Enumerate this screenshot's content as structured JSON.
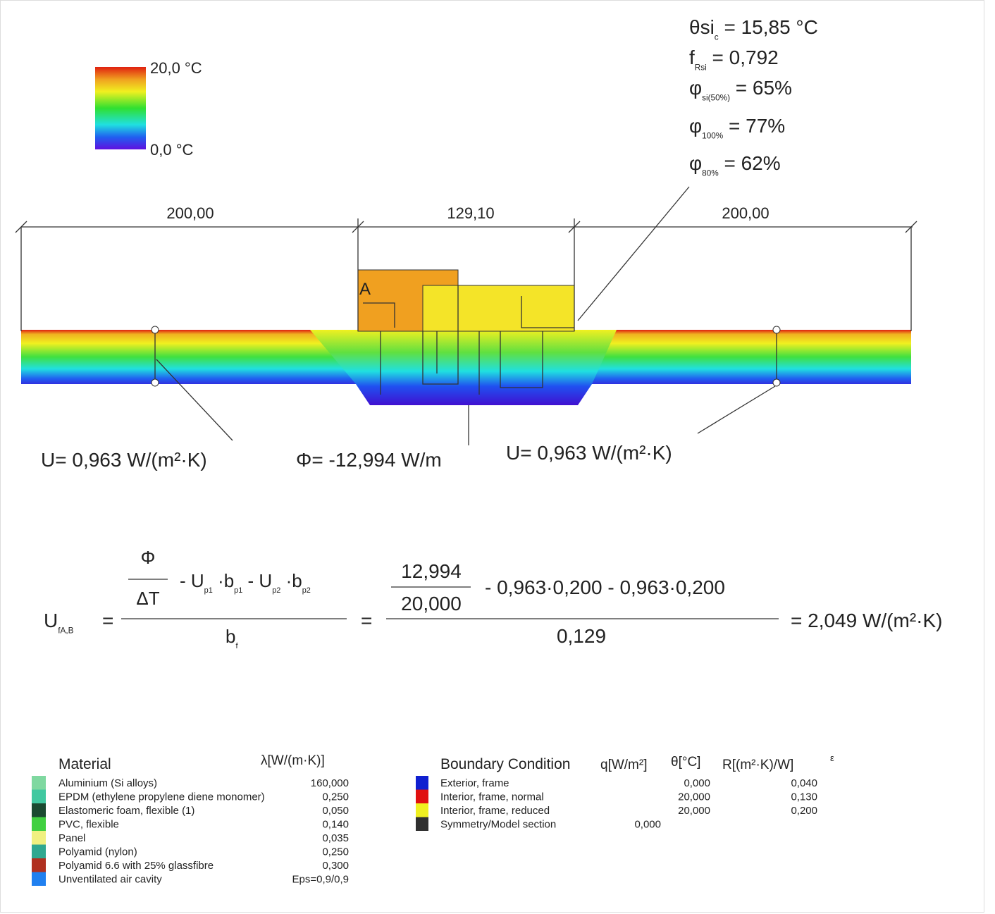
{
  "legend": {
    "max": "20,0 °C",
    "min": "0,0 °C"
  },
  "results": [
    {
      "symbol": "θsi",
      "sub": "c",
      "text": "= 15,85 °C"
    },
    {
      "symbol": "f",
      "sub": "Rsi",
      "text": "= 0,792"
    },
    {
      "symbol": "φ",
      "sub": "si(50%)",
      "text": "= 65%"
    },
    {
      "symbol": "φ",
      "sub": "100%",
      "text": "= 77%"
    },
    {
      "symbol": "φ",
      "sub": "80%",
      "text": "= 62%"
    }
  ],
  "dimensions": [
    "200,00",
    "129,10",
    "200,00"
  ],
  "section_label": "A",
  "annotations": [
    {
      "symbol": "U",
      "text": "= 0,963 W/(m²·K)"
    },
    {
      "symbol": "Φ",
      "text": "= -12,994 W/m"
    },
    {
      "symbol": "U",
      "text": "= 0,963 W/(m²·K)"
    }
  ],
  "formula": {
    "lhs": "U",
    "lhs_sub": "fA,B",
    "eq": "=",
    "phi": "Φ",
    "delta_t": "ΔT",
    "terms": [
      {
        "t": "- U",
        "s": "p1"
      },
      {
        "t": "·b",
        "s": "p1"
      },
      {
        "t": "- U",
        "s": "p2"
      },
      {
        "t": "·b",
        "s": "p2"
      }
    ],
    "denominator": "b",
    "denominator_sub": "f",
    "flux_value": "12,994",
    "delta_t_value": "20,000",
    "terms_values": "- 0,963·0,200  -  0,963·0,200",
    "width_value": "0,129",
    "result": "= 2,049 W/(m²·K)"
  },
  "materials": {
    "header": "Material",
    "lambda_header": "λ[W/(m·K)]",
    "rows": [
      {
        "name": "Aluminium (Si alloys)",
        "value": "160,000",
        "color": "#7fd8a0"
      },
      {
        "name": "EPDM (ethylene propylene diene monomer)",
        "value": "0,250",
        "color": "#40c8a0"
      },
      {
        "name": "Elastomeric foam, flexible (1)",
        "value": "0,050",
        "color": "#1a4a30"
      },
      {
        "name": "PVC, flexible",
        "value": "0,140",
        "color": "#40d040"
      },
      {
        "name": "Panel",
        "value": "0,035",
        "color": "#f0f080"
      },
      {
        "name": "Polyamid (nylon)",
        "value": "0,250",
        "color": "#30a890"
      },
      {
        "name": "Polyamid 6.6 with 25% glassfibre",
        "value": "0,300",
        "color": "#b03020"
      },
      {
        "name": "Unventilated air cavity",
        "value": "Eps=0,9/0,9",
        "color": "#2080f0"
      }
    ]
  },
  "boundary": {
    "header": "Boundary Condition",
    "q_header": "q[W/m²]",
    "theta_header": "θ[°C]",
    "r_header": "R[(m²·K)/W]",
    "eps_header": "ε",
    "rows": [
      {
        "name": "Exterior, frame",
        "theta": "0,000",
        "r": "0,040",
        "color": "#1020d0"
      },
      {
        "name": "Interior, frame, normal",
        "theta": "20,000",
        "r": "0,130",
        "color": "#e01010"
      },
      {
        "name": "Interior, frame, reduced",
        "theta": "20,000",
        "r": "0,200",
        "color": "#f0f020"
      },
      {
        "name": "Symmetry/Model section",
        "q": "0,000",
        "color": "#303030"
      }
    ]
  }
}
